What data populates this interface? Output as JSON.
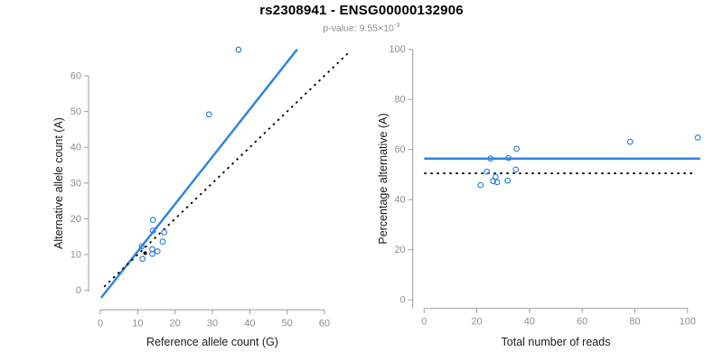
{
  "figure": {
    "title": "rs2308941 - ENSG00000132906",
    "pvalue_label": "p-value: ",
    "pvalue_mantissa": "9.55",
    "pvalue_base": "×10",
    "pvalue_exponent": "-3"
  },
  "colors": {
    "accent_blue": "#2E86DE",
    "identity_black": "#000000",
    "axis_gray": "#9b9b9b",
    "tick_label_gray": "#8e8e8e",
    "axis_title_dark": "#1a1a1a",
    "subtitle_gray": "#8c8c8c"
  },
  "chart_data": [
    {
      "id": "allele-counts-scatter",
      "type": "scatter",
      "xlabel": "Reference allele count (G)",
      "ylabel": "Alternative allele count (A)",
      "xlim": [
        0,
        60
      ],
      "ylim": [
        0,
        60
      ],
      "xticks": [
        0,
        10,
        20,
        30,
        40,
        50,
        60
      ],
      "yticks": [
        0,
        10,
        20,
        30,
        40,
        50,
        60
      ],
      "grid": false,
      "points": [
        [
          37.0,
          67.3
        ],
        [
          29.1,
          49.2
        ],
        [
          14.1,
          19.7
        ],
        [
          14.1,
          16.7
        ],
        [
          17.1,
          16.2
        ],
        [
          16.7,
          13.6
        ],
        [
          11.1,
          12.3
        ],
        [
          13.9,
          11.5
        ],
        [
          13.9,
          10.2
        ],
        [
          15.3,
          10.9
        ],
        [
          11.3,
          8.8
        ]
      ],
      "highlight_point": [
        12.0,
        10.4
      ],
      "lines": [
        {
          "name": "regression",
          "style": "solid",
          "color_key": "accent_blue",
          "from": [
            0.2,
            -2.1
          ],
          "to": [
            52.7,
            67.4
          ]
        },
        {
          "name": "identity",
          "style": "dotted",
          "color_key": "identity_black",
          "from": [
            1,
            1
          ],
          "to": [
            67,
            67
          ]
        }
      ]
    },
    {
      "id": "percentage-scatter",
      "type": "scatter",
      "xlabel": "Total number of reads",
      "ylabel": "Percentage alternative (A)",
      "xlim": [
        0,
        100
      ],
      "ylim": [
        0,
        100
      ],
      "xticks": [
        0,
        20,
        40,
        60,
        80,
        100
      ],
      "yticks": [
        0,
        20,
        40,
        60,
        80,
        100
      ],
      "grid": false,
      "points": [
        [
          103.9,
          64.8
        ],
        [
          78.2,
          63.1
        ],
        [
          35.1,
          60.3
        ],
        [
          25.2,
          56.4
        ],
        [
          32.0,
          56.6
        ],
        [
          34.8,
          52.0
        ],
        [
          23.8,
          51.2
        ],
        [
          27.1,
          49.1
        ],
        [
          26.2,
          47.4
        ],
        [
          27.7,
          47.0
        ],
        [
          31.7,
          47.6
        ],
        [
          21.4,
          45.8
        ]
      ],
      "lines": [
        {
          "name": "mean-percentage",
          "style": "solid",
          "color_key": "accent_blue",
          "from": [
            0,
            56.4
          ],
          "to": [
            104.8,
            56.4
          ]
        },
        {
          "name": "fifty-percent",
          "style": "dotted",
          "color_key": "identity_black",
          "from": [
            0,
            50.5
          ],
          "to": [
            102.5,
            50.5
          ]
        }
      ]
    }
  ]
}
